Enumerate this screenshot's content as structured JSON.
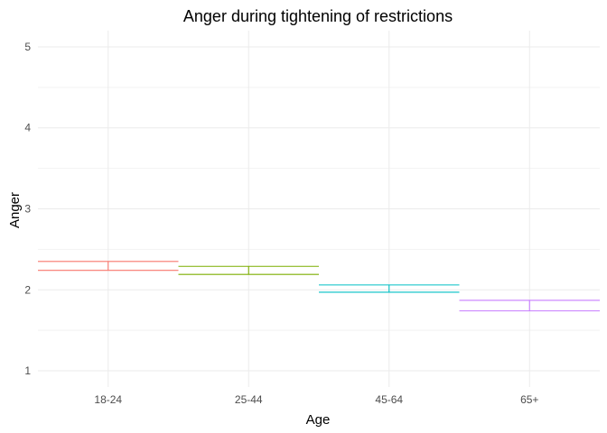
{
  "chart_data": {
    "type": "errorbar",
    "title": "Anger during tightening of restrictions",
    "xlabel": "Age",
    "ylabel": "Anger",
    "categories": [
      "18-24",
      "25-44",
      "45-64",
      "65+"
    ],
    "ylim": [
      0.8,
      5.2
    ],
    "yticks": [
      1,
      2,
      3,
      4,
      5
    ],
    "grid": true,
    "legend": "none",
    "intervals": [
      {
        "category": "18-24",
        "low": 2.24,
        "high": 2.35,
        "color": "#F8766D"
      },
      {
        "category": "25-44",
        "low": 2.19,
        "high": 2.29,
        "color": "#7CAE00"
      },
      {
        "category": "45-64",
        "low": 1.97,
        "high": 2.06,
        "color": "#00BFC4"
      },
      {
        "category": "65+",
        "low": 1.74,
        "high": 1.87,
        "color": "#C77CFF"
      }
    ]
  }
}
